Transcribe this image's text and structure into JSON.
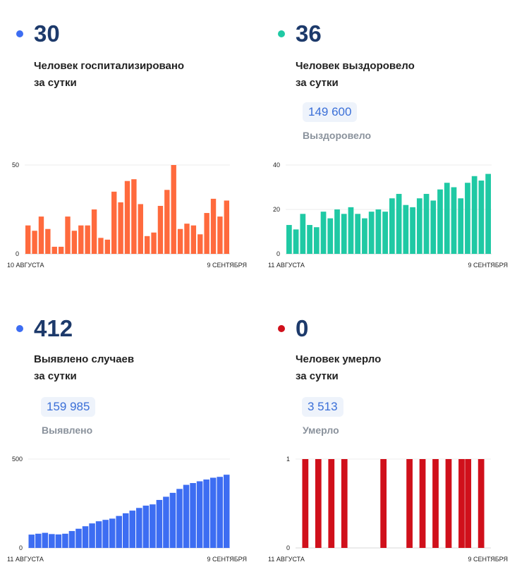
{
  "panels": [
    {
      "number": "30",
      "desc": "Человек госпитализировано\nза сутки",
      "total": "",
      "total_label": "",
      "dot_color": "#3d6df2",
      "bar_color": "#ff6a3d",
      "x_start": "10 АВГУСТА",
      "x_end": "9 СЕНТЯБРЯ"
    },
    {
      "number": "36",
      "desc": "Человек выздоровело\nза сутки",
      "total": "149 600",
      "total_label": "Выздоровело",
      "dot_color": "#1fc9a4",
      "bar_color": "#1fc9a4",
      "x_start": "11 АВГУСТА",
      "x_end": "9 СЕНТЯБРЯ"
    },
    {
      "number": "412",
      "desc": "Выявлено случаев\nза сутки",
      "total": "159 985",
      "total_label": "Выявлено",
      "dot_color": "#3d6df2",
      "bar_color": "#3d6df2",
      "x_start": "11 АВГУСТА",
      "x_end": "9 СЕНТЯБРЯ"
    },
    {
      "number": "0",
      "desc": "Человек умерло\nза сутки",
      "total": "3 513",
      "total_label": "Умерло",
      "dot_color": "#d0101b",
      "bar_color": "#d0101b",
      "x_start": "11 АВГУСТА",
      "x_end": "9 СЕНТЯБРЯ"
    }
  ],
  "chart_data": [
    {
      "type": "bar",
      "ylim": [
        0,
        50
      ],
      "yticks": [
        "0",
        "50"
      ],
      "tick_values": [
        0,
        50
      ],
      "x_start": "10 АВГУСТА",
      "x_end": "9 СЕНТЯБРЯ",
      "values": [
        16,
        13,
        21,
        14,
        4,
        4,
        21,
        13,
        16,
        16,
        25,
        9,
        8,
        35,
        29,
        41,
        42,
        28,
        10,
        12,
        27,
        36,
        50,
        14,
        17,
        16,
        11,
        23,
        31,
        21,
        30
      ]
    },
    {
      "type": "bar",
      "ylim": [
        0,
        40
      ],
      "yticks": [
        "0",
        "20",
        "40"
      ],
      "tick_values": [
        0,
        20,
        40
      ],
      "x_start": "11 АВГУСТА",
      "x_end": "9 СЕНТЯБРЯ",
      "values": [
        13,
        11,
        18,
        13,
        12,
        19,
        16,
        20,
        18,
        21,
        18,
        16,
        19,
        20,
        19,
        25,
        27,
        22,
        21,
        25,
        27,
        24,
        29,
        32,
        30,
        25,
        32,
        35,
        33,
        36
      ]
    },
    {
      "type": "bar",
      "ylim": [
        0,
        500
      ],
      "yticks": [
        "0",
        "500"
      ],
      "tick_values": [
        0,
        500
      ],
      "x_start": "11 АВГУСТА",
      "x_end": "9 СЕНТЯБРЯ",
      "values": [
        75,
        80,
        85,
        78,
        76,
        80,
        95,
        108,
        122,
        138,
        150,
        158,
        165,
        180,
        195,
        210,
        225,
        238,
        245,
        270,
        288,
        310,
        332,
        355,
        365,
        375,
        385,
        395,
        400,
        412
      ]
    },
    {
      "type": "bar",
      "ylim": [
        0,
        1
      ],
      "yticks": [
        "0",
        "1"
      ],
      "tick_values": [
        0,
        1
      ],
      "x_start": "11 АВГУСТА",
      "x_end": "9 СЕНТЯБРЯ",
      "values": [
        0,
        1,
        0,
        1,
        0,
        1,
        0,
        1,
        0,
        0,
        0,
        0,
        0,
        1,
        0,
        0,
        0,
        1,
        0,
        1,
        0,
        1,
        0,
        1,
        0,
        1,
        1,
        0,
        1,
        0
      ]
    }
  ]
}
